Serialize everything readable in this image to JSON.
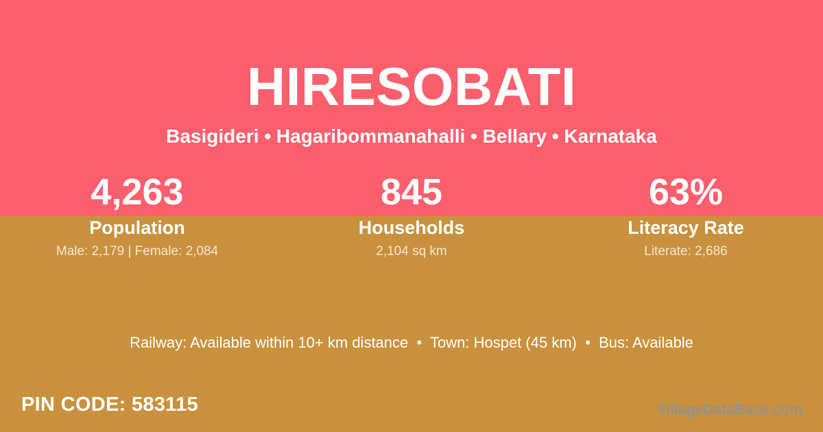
{
  "card": {
    "title": "HIRESOBATI",
    "breadcrumb": "Basigideri • Hagaribommanahalli • Bellary • Karnataka",
    "stats": [
      {
        "value": "4,263",
        "label": "Population",
        "detail": "Male: 2,179 | Female: 2,084"
      },
      {
        "value": "845",
        "label": "Households",
        "detail": "2,104 sq km"
      },
      {
        "value": "63%",
        "label": "Literacy Rate",
        "detail": "Literate: 2,686"
      }
    ],
    "info_line": "Railway: Available within 10+ km distance  •  Town: Hospet (45 km)  •  Bus: Available",
    "pin_code": "PIN CODE: 583115",
    "watermark": "VillageDataBase.com",
    "colors": {
      "top_background": "#fb5e6c",
      "bottom_background": "#c9913d",
      "primary_text": "#ffffff",
      "detail_text": "#f3e2c6",
      "watermark_text": "#8e939a"
    }
  }
}
